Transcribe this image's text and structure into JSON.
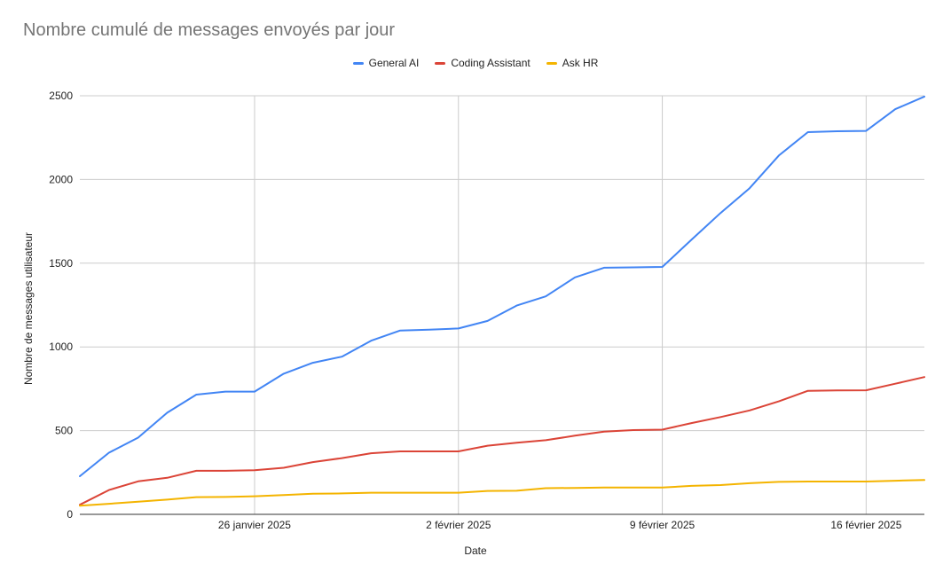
{
  "chart_data": {
    "type": "line",
    "title": "Nombre cumulé de messages envoyés par jour",
    "xlabel": "Date",
    "ylabel": "Nombre de messages utilisateur",
    "x_range": [
      "2025-01-20",
      "2025-02-18"
    ],
    "x_ticks": [
      {
        "date": "2025-01-26",
        "label": "26 janvier 2025"
      },
      {
        "date": "2025-02-02",
        "label": "2 février 2025"
      },
      {
        "date": "2025-02-09",
        "label": "9 février 2025"
      },
      {
        "date": "2025-02-16",
        "label": "16 février 2025"
      }
    ],
    "ylim": [
      0,
      2500
    ],
    "y_ticks": [
      "0",
      "500",
      "1000",
      "1500",
      "2000",
      "2500"
    ],
    "grid": true,
    "legend_position": "top-center",
    "x": [
      "2025-01-20",
      "2025-01-21",
      "2025-01-22",
      "2025-01-23",
      "2025-01-24",
      "2025-01-25",
      "2025-01-26",
      "2025-01-27",
      "2025-01-28",
      "2025-01-29",
      "2025-01-30",
      "2025-01-31",
      "2025-02-01",
      "2025-02-02",
      "2025-02-03",
      "2025-02-04",
      "2025-02-05",
      "2025-02-06",
      "2025-02-07",
      "2025-02-08",
      "2025-02-09",
      "2025-02-10",
      "2025-02-11",
      "2025-02-12",
      "2025-02-13",
      "2025-02-14",
      "2025-02-15",
      "2025-02-16",
      "2025-02-17",
      "2025-02-18"
    ],
    "series": [
      {
        "name": "General AI",
        "color": "#4285F4",
        "values": [
          228,
          368,
          458,
          607,
          715,
          733,
          733,
          840,
          905,
          942,
          1037,
          1098,
          1103,
          1110,
          1155,
          1247,
          1302,
          1415,
          1473,
          1475,
          1478,
          1640,
          1800,
          1948,
          2143,
          2283,
          2288,
          2290,
          2420,
          2495
        ]
      },
      {
        "name": "Coding Assistant",
        "color": "#DB4437",
        "values": [
          57,
          145,
          197,
          218,
          260,
          260,
          263,
          278,
          312,
          336,
          365,
          376,
          376,
          376,
          410,
          428,
          443,
          470,
          494,
          503,
          506,
          545,
          581,
          621,
          675,
          738,
          740,
          741,
          780,
          820
        ]
      },
      {
        "name": "Ask HR",
        "color": "#F4B400",
        "values": [
          52,
          63,
          75,
          88,
          103,
          104,
          108,
          115,
          123,
          125,
          129,
          129,
          129,
          129,
          140,
          141,
          156,
          158,
          160,
          160,
          160,
          170,
          175,
          186,
          194,
          196,
          196,
          196,
          201,
          205
        ]
      }
    ]
  }
}
